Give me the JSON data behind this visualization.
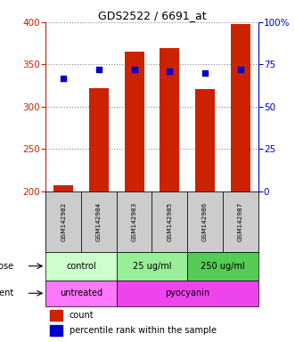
{
  "title": "GDS2522 / 6691_at",
  "samples": [
    "GSM142982",
    "GSM142984",
    "GSM142983",
    "GSM142985",
    "GSM142986",
    "GSM142987"
  ],
  "counts": [
    207,
    322,
    365,
    369,
    321,
    398
  ],
  "percentile_ranks": [
    67,
    72,
    72,
    71,
    70,
    72
  ],
  "ymin": 200,
  "ymax": 400,
  "yticks_left": [
    200,
    250,
    300,
    350,
    400
  ],
  "yticks_right": [
    0,
    25,
    50,
    75,
    100
  ],
  "bar_color": "#cc2200",
  "dot_color": "#0000cc",
  "dose_defs": [
    {
      "text": "control",
      "start": 0,
      "end": 2,
      "color": "#ccffcc"
    },
    {
      "text": "25 ug/ml",
      "start": 2,
      "end": 4,
      "color": "#99ee99"
    },
    {
      "text": "250 ug/ml",
      "start": 4,
      "end": 6,
      "color": "#55cc55"
    }
  ],
  "agent_defs": [
    {
      "text": "untreated",
      "start": 0,
      "end": 2,
      "color": "#ff77ff"
    },
    {
      "text": "pyocyanin",
      "start": 2,
      "end": 6,
      "color": "#ee44ee"
    }
  ],
  "dose_row_label": "dose",
  "agent_row_label": "agent",
  "legend_count_label": "count",
  "legend_percentile_label": "percentile rank within the sample",
  "tick_label_color_left": "#cc2200",
  "tick_label_color_right": "#0000cc",
  "grid_color": "#888888",
  "sample_bg_color": "#cccccc",
  "bar_bottom": 200,
  "n_samples": 6
}
